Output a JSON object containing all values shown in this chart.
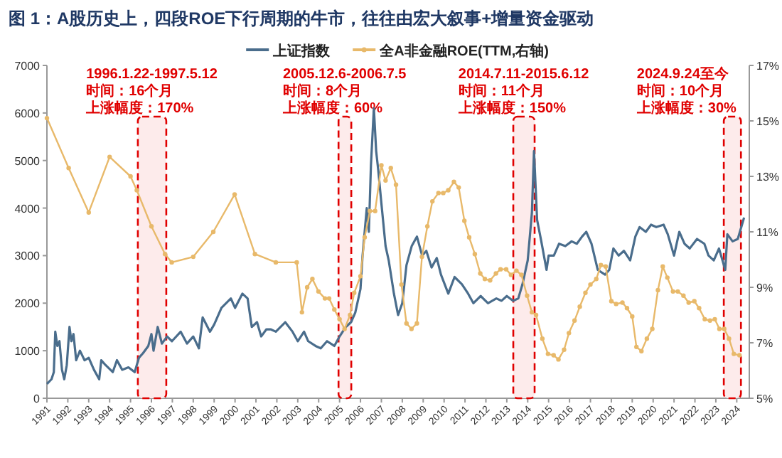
{
  "chart_data": {
    "type": "line",
    "title": "图 1：A股历史上，四段ROE下行周期的牛市，往往由宏大叙事+增量资金驱动",
    "xlim": [
      1991,
      2024.6
    ],
    "xticks": [
      1991,
      1992,
      1993,
      1994,
      1995,
      1996,
      1997,
      1998,
      1999,
      2000,
      2001,
      2002,
      2003,
      2004,
      2005,
      2006,
      2007,
      2008,
      2009,
      2010,
      2011,
      2012,
      2013,
      2014,
      2015,
      2016,
      2017,
      2018,
      2019,
      2020,
      2021,
      2022,
      2023,
      2024
    ],
    "ylim": [
      0,
      7000
    ],
    "yticks": [
      0,
      1000,
      2000,
      3000,
      4000,
      5000,
      6000,
      7000
    ],
    "y2lim": [
      5,
      17
    ],
    "y2ticks": [
      {
        "value": 5,
        "label": "5%"
      },
      {
        "value": 7,
        "label": "7%"
      },
      {
        "value": 9,
        "label": "9%"
      },
      {
        "value": 11,
        "label": "11%"
      },
      {
        "value": 13,
        "label": "13%"
      },
      {
        "value": 15,
        "label": "15%"
      },
      {
        "value": 17,
        "label": "17%"
      }
    ],
    "legend": "top",
    "grid": false,
    "series": [
      {
        "name": "上证指数",
        "color": "#4a6d8c",
        "marker": "none",
        "x": [
          1991.0,
          1991.22,
          1991.33,
          1991.4,
          1991.5,
          1991.6,
          1991.72,
          1991.83,
          1991.95,
          1992.08,
          1992.17,
          1992.27,
          1992.4,
          1992.58,
          1992.8,
          1993.0,
          1993.25,
          1993.5,
          1993.6,
          1993.8,
          1994.15,
          1994.35,
          1994.6,
          1994.9,
          1995.2,
          1995.4,
          1995.6,
          1995.85,
          1996.0,
          1996.1,
          1996.3,
          1996.5,
          1996.75,
          1996.98,
          1997.4,
          1997.7,
          1998.0,
          1998.27,
          1998.45,
          1998.8,
          1999.0,
          1999.35,
          1999.8,
          2000.0,
          2000.35,
          2000.6,
          2000.8,
          2001.05,
          2001.25,
          2001.5,
          2001.7,
          2001.95,
          2002.4,
          2002.75,
          2003.0,
          2003.3,
          2003.5,
          2003.85,
          2004.1,
          2004.4,
          2004.75,
          2005.0,
          2005.3,
          2005.55,
          2005.75,
          2006.0,
          2006.1,
          2006.3,
          2006.4,
          2006.5,
          2006.64,
          2006.75,
          2006.85,
          2007.0,
          2007.2,
          2007.35,
          2007.6,
          2007.8,
          2008.0,
          2008.2,
          2008.45,
          2008.7,
          2008.95,
          2009.15,
          2009.4,
          2009.65,
          2009.85,
          2010.2,
          2010.5,
          2010.85,
          2011.15,
          2011.4,
          2011.75,
          2012.1,
          2012.5,
          2012.75,
          2013.0,
          2013.3,
          2013.55,
          2013.75,
          2014.0,
          2014.2,
          2014.3,
          2014.45,
          2014.65,
          2014.9,
          2015.0,
          2015.25,
          2015.5,
          2015.8,
          2016.1,
          2016.35,
          2016.6,
          2016.8,
          2017.05,
          2017.35,
          2017.7,
          2017.9,
          2018.1,
          2018.35,
          2018.6,
          2018.9,
          2019.15,
          2019.35,
          2019.65,
          2019.9,
          2020.15,
          2020.5,
          2020.7,
          2021.0,
          2021.25,
          2021.5,
          2021.75,
          2022.1,
          2022.45,
          2022.65,
          2022.9,
          2023.15,
          2023.45,
          2023.55,
          2023.8,
          2024.05,
          2024.35
        ],
        "values": [
          300,
          400,
          550,
          1400,
          1100,
          1200,
          600,
          400,
          700,
          1500,
          1200,
          1350,
          800,
          1000,
          800,
          850,
          600,
          400,
          800,
          700,
          550,
          800,
          600,
          650,
          550,
          850,
          950,
          1100,
          1350,
          1000,
          1500,
          1150,
          1300,
          1200,
          1400,
          1150,
          1300,
          1050,
          1700,
          1400,
          1550,
          1900,
          2100,
          1900,
          2200,
          2100,
          1500,
          1600,
          1300,
          1450,
          1450,
          1400,
          1600,
          1400,
          1200,
          1400,
          1200,
          1100,
          1050,
          1200,
          1100,
          1300,
          1500,
          1600,
          1800,
          2300,
          3000,
          4000,
          3500,
          4900,
          6100,
          5200,
          4800,
          4100,
          3200,
          2900,
          2200,
          1750,
          2000,
          2800,
          3200,
          3400,
          3000,
          3100,
          2750,
          2950,
          2600,
          2200,
          2550,
          2400,
          2200,
          2000,
          2150,
          2000,
          2100,
          2050,
          2150,
          2050,
          2100,
          2400,
          2900,
          3900,
          5200,
          3750,
          3300,
          2700,
          3000,
          3000,
          3250,
          3200,
          3300,
          3250,
          3400,
          3500,
          3250,
          2700,
          2600,
          2700,
          3150,
          3000,
          3100,
          2900,
          3400,
          3600,
          3500,
          3650,
          3600,
          3650,
          3450,
          3000,
          3500,
          3250,
          3150,
          3350,
          3250,
          3000,
          2900,
          3150,
          2700,
          3450,
          3300,
          3350,
          3800
        ]
      },
      {
        "name": "全A非金融ROE(TTM,右轴)",
        "color": "#e8b96a",
        "axis": "y2",
        "marker": "circle",
        "x": [
          1991.0,
          1992.04,
          1993.0,
          1994.0,
          1995.0,
          1995.3,
          1996.0,
          1996.65,
          1996.97,
          1998.0,
          1998.96,
          1999.98,
          2000.95,
          2001.95,
          2002.95,
          2003.2,
          2003.45,
          2003.7,
          2003.99,
          2004.3,
          2004.5,
          2004.75,
          2005.0,
          2005.24,
          2005.5,
          2005.7,
          2006.0,
          2006.2,
          2006.45,
          2006.7,
          2007.0,
          2007.2,
          2007.45,
          2007.7,
          2007.96,
          2008.2,
          2008.44,
          2008.7,
          2008.94,
          2009.2,
          2009.44,
          2009.73,
          2009.96,
          2010.2,
          2010.47,
          2010.7,
          2010.97,
          2011.2,
          2011.47,
          2011.73,
          2011.95,
          2012.2,
          2012.48,
          2012.7,
          2012.97,
          2013.2,
          2013.46,
          2013.7,
          2013.97,
          2014.2,
          2014.4,
          2014.7,
          2014.97,
          2015.24,
          2015.47,
          2015.74,
          2015.97,
          2016.24,
          2016.49,
          2016.76,
          2017.0,
          2017.28,
          2017.5,
          2017.73,
          2018.0,
          2018.23,
          2018.53,
          2018.75,
          2019.0,
          2019.2,
          2019.44,
          2019.7,
          2019.96,
          2020.23,
          2020.46,
          2020.68,
          2020.95,
          2021.18,
          2021.45,
          2021.7,
          2021.97,
          2022.2,
          2022.47,
          2022.72,
          2022.95,
          2023.17,
          2023.4,
          2023.63,
          2023.86,
          2024.13
        ],
        "values": [
          15.1,
          13.3,
          11.7,
          13.7,
          13.0,
          12.5,
          11.2,
          10.2,
          9.9,
          10.1,
          11.0,
          12.35,
          10.2,
          9.9,
          9.9,
          8.1,
          9.0,
          9.3,
          8.85,
          8.6,
          8.6,
          8.2,
          7.85,
          7.5,
          8.0,
          8.8,
          9.4,
          10.8,
          11.75,
          11.75,
          13.4,
          12.85,
          13.3,
          12.7,
          9.1,
          7.7,
          7.5,
          7.7,
          10.1,
          11.2,
          12.1,
          12.4,
          12.4,
          12.5,
          12.8,
          12.6,
          11.4,
          10.8,
          10.2,
          9.5,
          9.3,
          9.25,
          9.5,
          9.65,
          9.65,
          9.45,
          9.6,
          9.45,
          8.7,
          8.1,
          8.0,
          7.15,
          6.6,
          6.55,
          6.4,
          6.75,
          7.35,
          7.8,
          8.3,
          8.8,
          9.1,
          9.3,
          9.8,
          9.75,
          8.5,
          8.4,
          8.45,
          8.25,
          7.95,
          6.85,
          6.7,
          7.15,
          7.5,
          8.9,
          9.75,
          9.35,
          8.85,
          8.85,
          8.7,
          8.45,
          8.5,
          8.25,
          7.85,
          7.8,
          7.85,
          7.5,
          7.5,
          7.15,
          6.6,
          6.55
        ]
      }
    ],
    "bands": [
      {
        "axis": "x",
        "from": 1995.35,
        "to": 1996.71,
        "color": "#e00000",
        "label": "1996.1.22-1997.5.12"
      },
      {
        "axis": "x",
        "from": 2004.95,
        "to": 2005.56,
        "color": "#e00000",
        "label": "2005.12.6-2006.7.5"
      },
      {
        "axis": "x",
        "from": 2013.31,
        "to": 2014.33,
        "color": "#e00000",
        "label": "2014.7.11-2015.6.12"
      },
      {
        "axis": "x",
        "from": 2023.38,
        "to": 2024.2,
        "color": "#e00000",
        "label": "2024.9.24至今"
      }
    ],
    "annotations": [
      "时间：16个月",
      "上涨幅度：170%",
      "时间：8个月",
      "上涨幅度：60%",
      "时间：11个月",
      "上涨幅度：150%",
      "时间：10个月",
      "上涨幅度：30%"
    ]
  }
}
